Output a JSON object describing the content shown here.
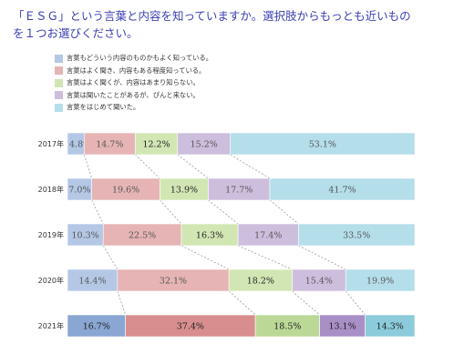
{
  "title": {
    "line1": "「ＥＳＧ」という言葉と内容を知っていますか。選択肢からもっとも近いもの",
    "line2": "を１つお選びください。"
  },
  "colors": {
    "segments": [
      "#b4c8e6",
      "#e6b4b4",
      "#d2e6b4",
      "#cdbedd",
      "#b4deea"
    ],
    "segments_dark": [
      "#8aa6d3",
      "#d88e8e",
      "#bcd897",
      "#a88fc6",
      "#8ccbdb"
    ],
    "dashed_line": "#999999",
    "label_text": "#555555",
    "label_text_dark": "#222222"
  },
  "chart_data": {
    "type": "bar",
    "orientation": "horizontal",
    "stacked": true,
    "percent_stacked": true,
    "categories": [
      "2017年",
      "2018年",
      "2019年",
      "2020年",
      "2021年"
    ],
    "series": [
      {
        "name": "言葉もどういう内容のものかもよく知っている。",
        "values": [
          4.8,
          7.0,
          10.3,
          14.4,
          16.7
        ]
      },
      {
        "name": "言葉はよく聞き、内容もある程度知っている。",
        "values": [
          14.7,
          19.6,
          22.5,
          32.1,
          37.4
        ]
      },
      {
        "name": "言葉はよく聞くが、内容はあまり知らない。",
        "values": [
          12.2,
          13.9,
          16.3,
          18.2,
          18.5
        ]
      },
      {
        "name": "言葉は聞いたことがあるが、ぴんと来ない。",
        "values": [
          15.2,
          17.7,
          17.4,
          15.4,
          13.1
        ]
      },
      {
        "name": "言葉をはじめて聞いた。",
        "values": [
          53.1,
          41.7,
          33.5,
          19.9,
          14.3
        ]
      }
    ],
    "data_labels": [
      [
        "4.8%",
        "14.7%",
        "12.2%",
        "15.2%",
        "53.1%"
      ],
      [
        "7.0%",
        "19.6%",
        "13.9%",
        "17.7%",
        "41.7%"
      ],
      [
        "10.3%",
        "22.5%",
        "16.3%",
        "17.4%",
        "33.5%"
      ],
      [
        "14.4%",
        "32.1%",
        "18.2%",
        "15.4%",
        "19.9%"
      ],
      [
        "16.7%",
        "37.4%",
        "18.5%",
        "13.1%",
        "14.3%"
      ]
    ],
    "highlight_category": "2021年",
    "series_lines": "dashed",
    "grid": false,
    "legend_position": "top-left",
    "xlim": [
      0,
      100
    ]
  }
}
